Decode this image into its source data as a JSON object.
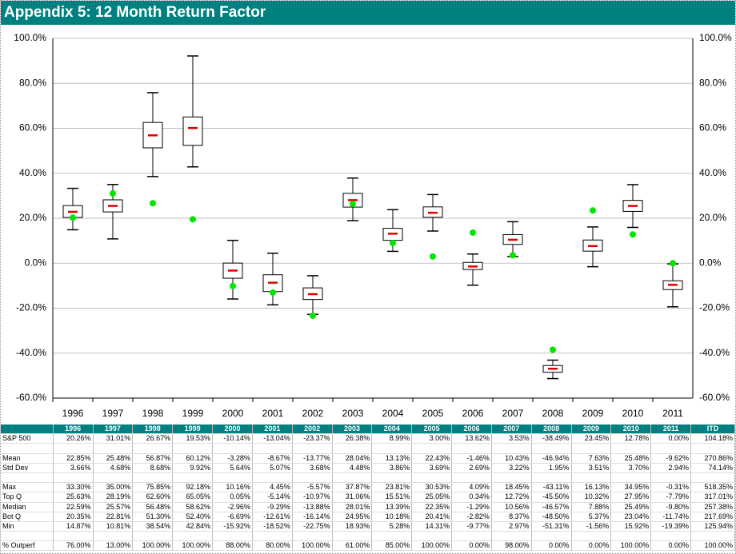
{
  "chart_data": {
    "type": "box",
    "title": "Appendix 5: 12 Month Return Factor",
    "categories": [
      "1996",
      "1997",
      "1998",
      "1999",
      "2000",
      "2001",
      "2002",
      "2003",
      "2004",
      "2005",
      "2006",
      "2007",
      "2008",
      "2009",
      "2010",
      "2011"
    ],
    "total_label": "ITD",
    "ylim": [
      -60,
      100
    ],
    "yticks": [
      {
        "value": -60,
        "label": "-60.0%"
      },
      {
        "value": -40,
        "label": "-40.0%"
      },
      {
        "value": -20,
        "label": "-20.0%"
      },
      {
        "value": 0,
        "label": "0.0%"
      },
      {
        "value": 20,
        "label": "20.0%"
      },
      {
        "value": 40,
        "label": "40.0%"
      },
      {
        "value": 60,
        "label": "60.0%"
      },
      {
        "value": 80,
        "label": "80.0%"
      },
      {
        "value": 100,
        "label": "100.0%"
      }
    ],
    "grid": true,
    "series": [
      {
        "name": "S&P 500",
        "color": "#00e600",
        "values": [
          20.26,
          31.01,
          26.67,
          19.53,
          -10.14,
          -13.04,
          -23.37,
          26.38,
          8.99,
          3.0,
          13.62,
          3.53,
          -38.49,
          23.45,
          12.78,
          0.0
        ],
        "value_labels": [
          "20.26%",
          "31.01%",
          "26.67%",
          "19.53%",
          "-10.14%",
          "-13.04%",
          "-23.37%",
          "26.38%",
          "8.99%",
          "3.00%",
          "13.62%",
          "3.53%",
          "-38.49%",
          "23.45%",
          "12.78%",
          "0.00%"
        ],
        "total": "104.18%"
      },
      {
        "name": "Mean",
        "color": "#e00000",
        "values": [
          22.85,
          25.48,
          56.87,
          60.12,
          -3.28,
          -8.67,
          -13.77,
          28.04,
          13.13,
          22.43,
          -1.46,
          10.43,
          -46.94,
          7.63,
          25.48,
          -9.62
        ],
        "value_labels": [
          "22.85%",
          "25.48%",
          "56.87%",
          "60.12%",
          "-3.28%",
          "-8.67%",
          "-13.77%",
          "28.04%",
          "13.13%",
          "22.43%",
          "-1.46%",
          "10.43%",
          "-46.94%",
          "7.63%",
          "25.48%",
          "-9.62%"
        ],
        "total": "270.86%"
      },
      {
        "name": "Std Dev",
        "value_labels": [
          "3.66%",
          "4.68%",
          "8.68%",
          "9.92%",
          "5.64%",
          "5.07%",
          "3.68%",
          "4.48%",
          "3.86%",
          "3.69%",
          "2.69%",
          "3.22%",
          "1.95%",
          "3.51%",
          "3.70%",
          "2.94%"
        ],
        "total": "74.14%"
      },
      {
        "name": "Max",
        "values": [
          33.3,
          35.0,
          75.85,
          92.18,
          10.16,
          4.45,
          -5.57,
          37.87,
          23.81,
          30.53,
          4.09,
          18.45,
          -43.11,
          16.13,
          34.95,
          -0.31
        ],
        "value_labels": [
          "33.30%",
          "35.00%",
          "75.85%",
          "92.18%",
          "10.16%",
          "4.45%",
          "-5.57%",
          "37.87%",
          "23.81%",
          "30.53%",
          "4.09%",
          "18.45%",
          "-43.11%",
          "16.13%",
          "34.95%",
          "-0.31%"
        ],
        "total": "518.35%"
      },
      {
        "name": "Top Q",
        "values": [
          25.63,
          28.19,
          62.6,
          65.05,
          0.05,
          -5.14,
          -10.97,
          31.06,
          15.51,
          25.05,
          0.34,
          12.72,
          -45.5,
          10.32,
          27.95,
          -7.79
        ],
        "value_labels": [
          "25.63%",
          "28.19%",
          "62.60%",
          "65.05%",
          "0.05%",
          "-5.14%",
          "-10.97%",
          "31.06%",
          "15.51%",
          "25.05%",
          "0.34%",
          "12.72%",
          "-45.50%",
          "10.32%",
          "27.95%",
          "-7.79%"
        ],
        "total": "317.01%"
      },
      {
        "name": "Median",
        "value_labels": [
          "22.59%",
          "25.57%",
          "56.48%",
          "58.62%",
          "-2.96%",
          "-9.29%",
          "-13.88%",
          "28.01%",
          "13.39%",
          "22.35%",
          "-1.29%",
          "10.56%",
          "-46.57%",
          "7.88%",
          "25.49%",
          "-9.80%"
        ],
        "total": "257.38%"
      },
      {
        "name": "Bot Q",
        "values": [
          20.35,
          22.81,
          51.3,
          52.4,
          -6.69,
          -12.61,
          -16.14,
          24.95,
          10.18,
          20.41,
          -2.82,
          8.37,
          -48.5,
          5.37,
          23.04,
          -11.74
        ],
        "value_labels": [
          "20.35%",
          "22.81%",
          "51.30%",
          "52.40%",
          "-6.69%",
          "-12.61%",
          "-16.14%",
          "24.95%",
          "10.18%",
          "20.41%",
          "-2.82%",
          "8.37%",
          "-48.50%",
          "5.37%",
          "23.04%",
          "-11.74%"
        ],
        "total": "217.69%"
      },
      {
        "name": "Min",
        "values": [
          14.87,
          10.81,
          38.54,
          42.84,
          -15.92,
          -18.52,
          -22.75,
          18.93,
          5.28,
          14.31,
          -9.77,
          2.97,
          -51.31,
          -1.56,
          15.92,
          -19.39
        ],
        "value_labels": [
          "14.87%",
          "10.81%",
          "38.54%",
          "42.84%",
          "-15.92%",
          "-18.52%",
          "-22.75%",
          "18.93%",
          "5.28%",
          "14.31%",
          "-9.77%",
          "2.97%",
          "-51.31%",
          "-1.56%",
          "15.92%",
          "-19.39%"
        ],
        "total": "125.94%"
      },
      {
        "name": "% Outperf",
        "value_labels": [
          "76.00%",
          "13.00%",
          "100.00%",
          "100.00%",
          "88.00%",
          "80.00%",
          "100.00%",
          "61.00%",
          "85.00%",
          "100.00%",
          "0.00%",
          "98.00%",
          "0.00%",
          "0.00%",
          "100.00%",
          "0.00%"
        ],
        "total": "100.00%"
      }
    ]
  }
}
